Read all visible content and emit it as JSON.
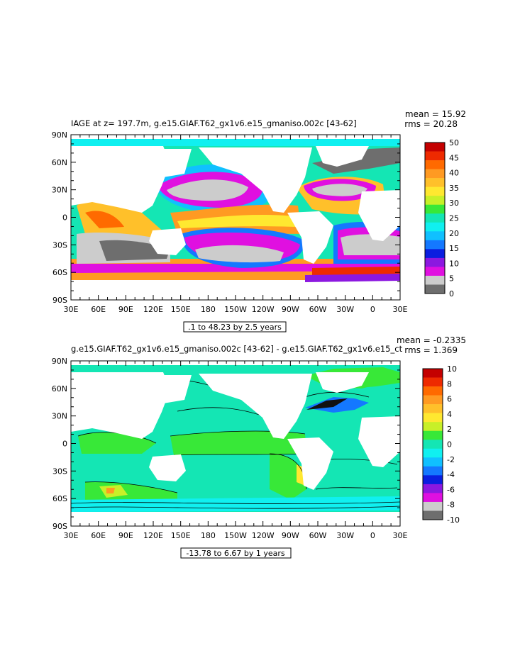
{
  "chart_data": [
    {
      "type": "heatmap",
      "title": "IAGE at z= 197.7m, g.e15.GIAF.T62_gx1v6.e15_gmaniso.002c [43-62]",
      "mean_label": "mean = 15.92",
      "rms_label": "rms = 20.28",
      "y_ticks": [
        "90N",
        "60N",
        "30N",
        "0",
        "30S",
        "60S",
        "90S"
      ],
      "x_ticks": [
        "30E",
        "60E",
        "90E",
        "120E",
        "150E",
        "180",
        "150W",
        "120W",
        "90W",
        "60W",
        "30W",
        "0",
        "30E"
      ],
      "colorbar_labels": [
        "50",
        "45",
        "40",
        "35",
        "30",
        "25",
        "20",
        "15",
        "10",
        "5",
        "0"
      ],
      "colorbar_colors": [
        "#c40000",
        "#ee2a00",
        "#ff6a00",
        "#ff9a22",
        "#ffc02a",
        "#ffe830",
        "#c8f028",
        "#38e838",
        "#14e6b4",
        "#10f0f0",
        "#10c0ff",
        "#1478ff",
        "#0a1ee0",
        "#8c18e0",
        "#e010e0",
        "#cccccc",
        "#6e6e6e"
      ],
      "range_label": ".1 to 48.23 by 2.5 years",
      "colors": {
        "land": "#ffffff",
        "low_age": "#6e6e6e"
      }
    },
    {
      "type": "heatmap",
      "title": "g.e15.GIAF.T62_gx1v6.e15_gmaniso.002c [43-62] - g.e15.GIAF.T62_gx1v6.e15_ct",
      "mean_label": "mean = -0.2335",
      "rms_label": "rms = 1.369",
      "y_ticks": [
        "90N",
        "60N",
        "30N",
        "0",
        "30S",
        "60S",
        "90S"
      ],
      "x_ticks": [
        "30E",
        "60E",
        "90E",
        "120E",
        "150E",
        "180",
        "150W",
        "120W",
        "90W",
        "60W",
        "30W",
        "0",
        "30E"
      ],
      "colorbar_labels": [
        "10",
        "8",
        "6",
        "4",
        "2",
        "0",
        "-2",
        "-4",
        "-6",
        "-8",
        "-10"
      ],
      "colorbar_colors": [
        "#c40000",
        "#ee2a00",
        "#ff6a00",
        "#ff9a22",
        "#ffc02a",
        "#ffe830",
        "#c8f028",
        "#38e838",
        "#14e6b4",
        "#10f0f0",
        "#10c0ff",
        "#1478ff",
        "#0a1ee0",
        "#8c18e0",
        "#e010e0",
        "#cccccc",
        "#6e6e6e"
      ],
      "range_label": "-13.78 to 6.67 by 1 years",
      "colors": {
        "ocean": "#14e6b4",
        "land": "#ffffff"
      }
    }
  ]
}
